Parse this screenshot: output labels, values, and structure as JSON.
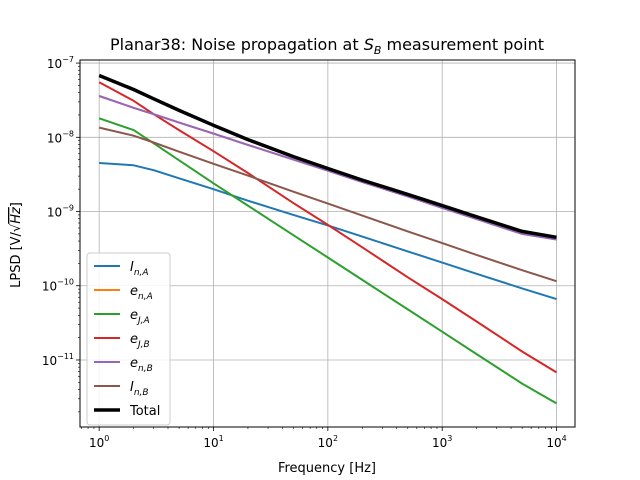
{
  "chart_data": {
    "type": "line",
    "title_html": "Planar38: Noise propagation at <tspan font-style=\"italic\">S</tspan><tspan font-style=\"italic\" font-size=\"11\" dy=\"4\">B</tspan><tspan dy=\"-4\"> measurement point</tspan>",
    "title": "Planar38: Noise propagation at S_B measurement point",
    "xlabel": "Frequency [Hz]",
    "ylabel": "LPSD [V/√Hz]",
    "x_scale": "log",
    "y_scale": "log",
    "xlim": [
      0.68,
      14500
    ],
    "ylim": [
      1.25e-12,
      1.1e-07
    ],
    "grid": true,
    "legend_position": "lower-left",
    "x_ticks": [
      {
        "value": 1,
        "label": "10",
        "exp": "0"
      },
      {
        "value": 10,
        "label": "10",
        "exp": "1"
      },
      {
        "value": 100,
        "label": "10",
        "exp": "2"
      },
      {
        "value": 1000,
        "label": "10",
        "exp": "3"
      },
      {
        "value": 10000,
        "label": "10",
        "exp": "4"
      }
    ],
    "y_ticks": [
      {
        "value": 1e-11,
        "label": "10",
        "exp": "−11"
      },
      {
        "value": 1e-10,
        "label": "10",
        "exp": "−10"
      },
      {
        "value": 1e-09,
        "label": "10",
        "exp": "−9"
      },
      {
        "value": 1e-08,
        "label": "10",
        "exp": "−8"
      },
      {
        "value": 1e-07,
        "label": "10",
        "exp": "−7"
      }
    ],
    "x": [
      1,
      2,
      3,
      5,
      10,
      20,
      50,
      100,
      200,
      500,
      1000,
      2000,
      5000,
      10000
    ],
    "series": [
      {
        "name": "I",
        "sub": "n,A",
        "color": "#1f77b4",
        "width": 2,
        "values": [
          4.5e-09,
          4.2e-09,
          3.6e-09,
          2.8e-09,
          2e-09,
          1.4e-09,
          9e-10,
          6.5e-10,
          4.6e-10,
          2.9e-10,
          2.05e-10,
          1.45e-10,
          9.2e-11,
          6.6e-11
        ]
      },
      {
        "name": "e",
        "sub": "n,A",
        "color": "#ff7f0e",
        "width": 2,
        "values": [
          3.6e-08,
          2.5e-08,
          2.05e-08,
          1.58e-08,
          1.12e-08,
          7.9e-09,
          5e-09,
          3.55e-09,
          2.5e-09,
          1.6e-09,
          1.12e-09,
          7.9e-10,
          5e-10,
          4.2e-10
        ]
      },
      {
        "name": "e",
        "sub": "J,A",
        "color": "#2ca02c",
        "width": 2,
        "values": [
          1.8e-08,
          1.25e-08,
          8.3e-09,
          4.9e-09,
          2.4e-09,
          1.2e-09,
          4.8e-10,
          2.4e-10,
          1.2e-10,
          4.8e-11,
          2.4e-11,
          1.2e-11,
          4.8e-12,
          2.6e-12
        ]
      },
      {
        "name": "e",
        "sub": "J,B",
        "color": "#d62728",
        "width": 2,
        "values": [
          5.5e-08,
          3.1e-08,
          2.05e-08,
          1.25e-08,
          6.5e-09,
          3.3e-09,
          1.3e-09,
          6.6e-10,
          3.3e-10,
          1.3e-10,
          6.6e-11,
          3.3e-11,
          1.3e-11,
          6.8e-12
        ]
      },
      {
        "name": "e",
        "sub": "n,B",
        "color": "#9467bd",
        "width": 2,
        "values": [
          3.6e-08,
          2.5e-08,
          2.05e-08,
          1.58e-08,
          1.12e-08,
          7.9e-09,
          5e-09,
          3.55e-09,
          2.5e-09,
          1.6e-09,
          1.12e-09,
          7.9e-10,
          5e-10,
          4.2e-10
        ]
      },
      {
        "name": "I",
        "sub": "n,B",
        "color": "#8c564b",
        "width": 2,
        "values": [
          1.35e-08,
          1.05e-08,
          8.5e-09,
          6.4e-09,
          4.4e-09,
          3.05e-09,
          1.85e-09,
          1.28e-09,
          8.8e-10,
          5.4e-10,
          3.75e-10,
          2.6e-10,
          1.62e-10,
          1.15e-10
        ]
      },
      {
        "name": "Total",
        "sub": "",
        "color": "#000000",
        "width": 3.5,
        "values": [
          6.8e-08,
          4.4e-08,
          3.3e-08,
          2.3e-08,
          1.45e-08,
          9.3e-09,
          5.5e-09,
          3.8e-09,
          2.65e-09,
          1.7e-09,
          1.2e-09,
          8.5e-10,
          5.4e-10,
          4.5e-10
        ]
      }
    ]
  }
}
